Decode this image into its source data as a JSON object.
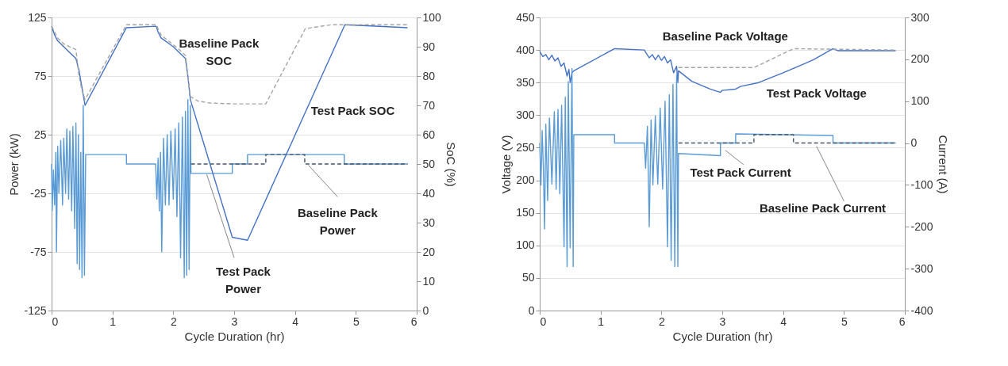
{
  "chart_data": [
    {
      "type": "line",
      "xlabel": "Cycle Duration (hr)",
      "ylabel": "Power (kW)",
      "y2label": "SoC (%)",
      "xlim": [
        0,
        6
      ],
      "xticks": [
        0,
        1,
        2,
        3,
        4,
        5,
        6
      ],
      "ylim": [
        -125,
        125
      ],
      "yticks": [
        -125,
        -75,
        -25,
        25,
        75,
        125
      ],
      "y2lim": [
        0,
        100
      ],
      "y2ticks": [
        0,
        10,
        20,
        30,
        40,
        50,
        60,
        70,
        80,
        90,
        100
      ],
      "grid": "y",
      "legend": false,
      "series": [
        {
          "name": "Test Pack Power",
          "color": "#5b9bd5",
          "line_style": "solid",
          "x": [
            0,
            0.01,
            0.03,
            0.05,
            0.07,
            0.08,
            0.1,
            0.12,
            0.15,
            0.18,
            0.2,
            0.23,
            0.25,
            0.28,
            0.3,
            0.33,
            0.35,
            0.38,
            0.4,
            0.42,
            0.44,
            0.46,
            0.48,
            0.5,
            0.52,
            0.54,
            0.56,
            1.23,
            1.23,
            1.71,
            1.73,
            1.75,
            1.77,
            1.79,
            1.81,
            1.84,
            1.87,
            1.9,
            1.93,
            1.96,
            2.0,
            2.03,
            2.06,
            2.09,
            2.12,
            2.15,
            2.18,
            2.2,
            2.22,
            2.24,
            2.26,
            2.28,
            2.29,
            2.97,
            2.97,
            3.22,
            3.22,
            4.81,
            4.81,
            5.85
          ],
          "values": [
            0,
            -40,
            -5,
            -35,
            10,
            -75,
            15,
            -25,
            20,
            -35,
            22,
            -25,
            30,
            -30,
            28,
            -40,
            32,
            -55,
            35,
            -85,
            25,
            -90,
            10,
            -97,
            50,
            -95,
            8,
            8,
            0,
            0,
            -30,
            5,
            -40,
            10,
            -75,
            22,
            -35,
            25,
            -35,
            28,
            -30,
            30,
            -45,
            35,
            -80,
            40,
            -97,
            45,
            -95,
            55,
            -90,
            50,
            -8,
            -8,
            0,
            0,
            8,
            8,
            0,
            0
          ]
        },
        {
          "name": "Baseline Pack Power",
          "color": "#44546a",
          "line_style": "dashed",
          "x": [
            2.29,
            3.52,
            3.52,
            4.16,
            4.16,
            5.85
          ],
          "values": [
            0,
            0,
            8,
            8,
            0,
            0
          ]
        },
        {
          "name": "Test Pack SOC",
          "color": "#4472c4",
          "line_style": "solid",
          "axis": "y2",
          "x": [
            0,
            0.05,
            0.1,
            0.2,
            0.3,
            0.4,
            0.45,
            0.5,
            0.55,
            1.23,
            1.72,
            1.75,
            1.8,
            2.0,
            2.1,
            2.2,
            2.24,
            2.28,
            2.97,
            3.22,
            4.82,
            5.85
          ],
          "values": [
            97,
            94,
            92,
            90,
            88,
            86,
            82,
            76,
            70,
            96.5,
            97,
            95,
            93,
            90,
            88,
            86,
            80,
            72,
            25,
            24,
            97.5,
            96.5
          ]
        },
        {
          "name": "Baseline Pack SOC",
          "color": "#a5a5a5",
          "line_style": "dashed",
          "axis": "y2",
          "x": [
            0,
            0.1,
            0.2,
            0.4,
            0.45,
            0.5,
            0.55,
            1.23,
            1.72,
            1.8,
            2.1,
            2.2,
            2.28,
            2.4,
            2.6,
            3.0,
            3.52,
            4.17,
            4.6,
            5.85
          ],
          "values": [
            97,
            93,
            91,
            89,
            80,
            75,
            72,
            97.5,
            97.5,
            94,
            89,
            87,
            73,
            71.5,
            70.8,
            70.5,
            70.5,
            96.2,
            97.5,
            97.5
          ]
        }
      ]
    },
    {
      "type": "line",
      "xlabel": "Cycle Duration (hr)",
      "ylabel": "Voltage (V)",
      "y2label": "Current (A)",
      "xlim": [
        0,
        6
      ],
      "xticks": [
        0,
        1,
        2,
        3,
        4,
        5,
        6
      ],
      "ylim": [
        0,
        450
      ],
      "yticks": [
        0,
        50,
        100,
        150,
        200,
        250,
        300,
        350,
        400,
        450
      ],
      "y2lim": [
        -400,
        300
      ],
      "y2ticks": [
        -400,
        -300,
        -200,
        -100,
        0,
        100,
        200,
        300
      ],
      "grid": "y",
      "legend": false,
      "series": [
        {
          "name": "Test Pack Current",
          "color": "#5b9bd5",
          "line_style": "solid",
          "axis": "y2",
          "x": [
            0,
            0.02,
            0.04,
            0.06,
            0.08,
            0.1,
            0.13,
            0.16,
            0.2,
            0.24,
            0.27,
            0.3,
            0.33,
            0.36,
            0.4,
            0.42,
            0.45,
            0.47,
            0.5,
            0.53,
            0.55,
            0.56,
            1.23,
            1.23,
            1.72,
            1.74,
            1.77,
            1.8,
            1.83,
            1.86,
            1.9,
            1.94,
            1.98,
            2.02,
            2.06,
            2.1,
            2.13,
            2.16,
            2.19,
            2.22,
            2.25,
            2.27,
            2.28,
            2.97,
            2.97,
            3.22,
            3.22,
            4.82,
            4.82,
            5.85
          ],
          "values": [
            0,
            -100,
            30,
            -60,
            -205,
            45,
            -137,
            60,
            -98,
            75,
            -110,
            80,
            -121,
            90,
            -248,
            110,
            -295,
            147,
            -250,
            178,
            -295,
            20,
            20,
            0,
            0,
            -60,
            40,
            -200,
            55,
            -100,
            65,
            -98,
            84,
            -110,
            100,
            -248,
            115,
            -280,
            140,
            -295,
            162,
            -295,
            -25,
            -30,
            0,
            0,
            22,
            18,
            0,
            0
          ]
        },
        {
          "name": "Baseline Pack Current",
          "color": "#44546a",
          "line_style": "dashed",
          "axis": "y2",
          "x": [
            2.28,
            3.52,
            3.52,
            4.17,
            4.17,
            5.85
          ],
          "values": [
            0,
            0,
            20,
            20,
            0,
            0
          ]
        },
        {
          "name": "Test Pack Voltage",
          "color": "#4472c4",
          "line_style": "solid",
          "x": [
            0,
            0.05,
            0.1,
            0.15,
            0.2,
            0.25,
            0.3,
            0.35,
            0.4,
            0.45,
            0.48,
            0.5,
            0.53,
            0.56,
            1.23,
            1.72,
            1.75,
            1.8,
            1.85,
            1.9,
            1.95,
            2.0,
            2.05,
            2.1,
            2.15,
            2.2,
            2.25,
            2.27,
            2.28,
            2.5,
            2.8,
            2.97,
            3.0,
            3.22,
            3.3,
            3.6,
            4.0,
            4.5,
            4.82,
            4.9,
            5.85
          ],
          "values": [
            398,
            390,
            393,
            385,
            392,
            383,
            388,
            375,
            380,
            360,
            370,
            350,
            365,
            368,
            402,
            400,
            395,
            388,
            393,
            385,
            392,
            384,
            390,
            380,
            385,
            365,
            375,
            350,
            368,
            352,
            340,
            335,
            338,
            340,
            344,
            350,
            365,
            385,
            402,
            399,
            399
          ]
        },
        {
          "name": "Baseline Pack Voltage",
          "color": "#a5a5a5",
          "line_style": "dashed",
          "x": [
            2.28,
            3.52,
            4.17,
            5.85
          ],
          "values": [
            373,
            373,
            402,
            400
          ]
        }
      ]
    }
  ]
}
